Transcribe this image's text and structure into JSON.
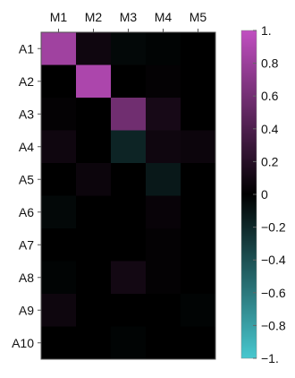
{
  "chart_data": {
    "type": "heatmap",
    "title": "",
    "xlabel": "",
    "ylabel": "",
    "columns": [
      "M1",
      "M2",
      "M3",
      "M4",
      "M5"
    ],
    "rows": [
      "A1",
      "A2",
      "A3",
      "A4",
      "A5",
      "A6",
      "A7",
      "A8",
      "A9",
      "A10"
    ],
    "values": [
      [
        0.83,
        0.08,
        -0.04,
        -0.02,
        0.0
      ],
      [
        0.0,
        0.89,
        0.0,
        0.02,
        0.0
      ],
      [
        0.02,
        0.0,
        0.58,
        0.12,
        0.0
      ],
      [
        0.08,
        0.0,
        -0.18,
        0.08,
        0.06
      ],
      [
        0.0,
        0.06,
        0.0,
        -0.12,
        0.0
      ],
      [
        -0.04,
        0.0,
        0.0,
        0.04,
        0.0
      ],
      [
        0.0,
        0.0,
        0.0,
        0.02,
        0.0
      ],
      [
        -0.02,
        0.0,
        0.1,
        0.02,
        0.0
      ],
      [
        0.07,
        0.0,
        0.0,
        0.0,
        -0.02
      ],
      [
        0.0,
        0.0,
        -0.02,
        0.0,
        0.0
      ]
    ],
    "colorbar": {
      "min": -1,
      "max": 1,
      "ticks": [
        1,
        0.8,
        0.6,
        0.4,
        0.2,
        0,
        -0.2,
        -0.4,
        -0.6,
        -0.8,
        -1
      ],
      "tick_labels": [
        "1.",
        "0.8",
        "0.6",
        "0.4",
        "0.2",
        "0",
        "−0.2",
        "−0.4",
        "−0.6",
        "−0.8",
        "−1."
      ],
      "colors": {
        "positive": "#C14FC1",
        "zero": "#000000",
        "negative": "#48C8CF"
      }
    }
  }
}
